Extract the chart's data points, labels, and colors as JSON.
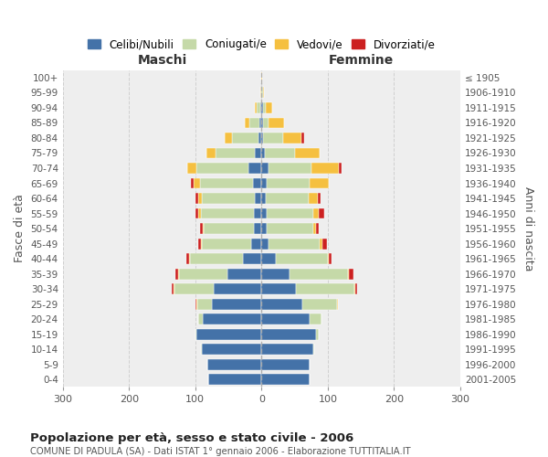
{
  "age_groups": [
    "0-4",
    "5-9",
    "10-14",
    "15-19",
    "20-24",
    "25-29",
    "30-34",
    "35-39",
    "40-44",
    "45-49",
    "50-54",
    "55-59",
    "60-64",
    "65-69",
    "70-74",
    "75-79",
    "80-84",
    "85-89",
    "90-94",
    "95-99",
    "100+"
  ],
  "birth_years": [
    "2001-2005",
    "1996-2000",
    "1991-1995",
    "1986-1990",
    "1981-1985",
    "1976-1980",
    "1971-1975",
    "1966-1970",
    "1961-1965",
    "1956-1960",
    "1951-1955",
    "1946-1950",
    "1941-1945",
    "1936-1940",
    "1931-1935",
    "1926-1930",
    "1921-1925",
    "1916-1920",
    "1911-1915",
    "1906-1910",
    "≤ 1905"
  ],
  "males_celibe": [
    80,
    82,
    90,
    98,
    88,
    75,
    72,
    52,
    28,
    15,
    12,
    12,
    10,
    13,
    20,
    10,
    5,
    3,
    2,
    0,
    0
  ],
  "males_coniugato": [
    0,
    0,
    2,
    2,
    8,
    22,
    60,
    72,
    80,
    75,
    75,
    80,
    80,
    80,
    78,
    60,
    40,
    15,
    5,
    1,
    0
  ],
  "males_vedovo": [
    0,
    0,
    0,
    0,
    0,
    1,
    1,
    2,
    1,
    2,
    2,
    4,
    5,
    9,
    14,
    13,
    10,
    7,
    3,
    1,
    0
  ],
  "males_divorziato": [
    0,
    0,
    0,
    0,
    0,
    1,
    2,
    4,
    4,
    4,
    4,
    3,
    5,
    5,
    0,
    0,
    0,
    0,
    0,
    0,
    0
  ],
  "females_nubile": [
    72,
    73,
    78,
    82,
    72,
    62,
    52,
    42,
    22,
    10,
    8,
    8,
    6,
    8,
    10,
    5,
    2,
    2,
    2,
    0,
    0
  ],
  "females_coniugata": [
    0,
    0,
    2,
    4,
    18,
    52,
    88,
    88,
    78,
    78,
    70,
    70,
    65,
    65,
    65,
    45,
    30,
    8,
    5,
    2,
    0
  ],
  "females_vedova": [
    0,
    0,
    0,
    0,
    1,
    1,
    2,
    2,
    2,
    4,
    4,
    9,
    14,
    28,
    42,
    38,
    28,
    24,
    9,
    2,
    1
  ],
  "females_divorziata": [
    0,
    0,
    0,
    0,
    0,
    1,
    2,
    7,
    4,
    7,
    4,
    8,
    4,
    0,
    4,
    0,
    5,
    0,
    0,
    0,
    0
  ],
  "colors": {
    "celibe": "#4472a8",
    "coniugato": "#c5d9a8",
    "vedovo": "#f5c040",
    "divorziato": "#cc2020"
  },
  "title": "Popolazione per età, sesso e stato civile - 2006",
  "subtitle": "COMUNE DI PADULA (SA) - Dati ISTAT 1° gennaio 2006 - Elaborazione TUTTITALIA.IT",
  "label_maschi": "Maschi",
  "label_femmine": "Femmine",
  "ylabel_left": "Fasce di età",
  "ylabel_right": "Anni di nascita",
  "xlim": 300,
  "legend_labels": [
    "Celibi/Nubili",
    "Coniugati/e",
    "Vedovi/e",
    "Divorziati/e"
  ],
  "bg_color": "#eeeeee"
}
